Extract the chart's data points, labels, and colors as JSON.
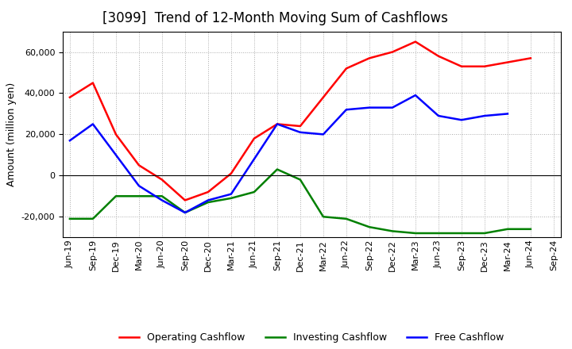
{
  "title": "[3099]  Trend of 12-Month Moving Sum of Cashflows",
  "ylabel": "Amount (million yen)",
  "xlabels": [
    "Jun-19",
    "Sep-19",
    "Dec-19",
    "Mar-20",
    "Jun-20",
    "Sep-20",
    "Dec-20",
    "Mar-21",
    "Jun-21",
    "Sep-21",
    "Dec-21",
    "Mar-22",
    "Jun-22",
    "Sep-22",
    "Dec-22",
    "Mar-23",
    "Jun-23",
    "Sep-23",
    "Dec-23",
    "Mar-24",
    "Jun-24",
    "Sep-24"
  ],
  "operating": [
    38000,
    45000,
    20000,
    5000,
    -2000,
    -12000,
    -8000,
    1000,
    18000,
    25000,
    24000,
    38000,
    52000,
    57000,
    60000,
    65000,
    58000,
    53000,
    53000,
    55000,
    57000,
    null
  ],
  "investing": [
    -21000,
    -21000,
    -10000,
    -10000,
    -10000,
    -18000,
    -13000,
    -11000,
    -8000,
    3000,
    -2000,
    -20000,
    -21000,
    -25000,
    -27000,
    -28000,
    -28000,
    -28000,
    -28000,
    -26000,
    -26000,
    null
  ],
  "free": [
    17000,
    25000,
    10000,
    -5000,
    -12000,
    -18000,
    -12000,
    -9000,
    8000,
    25000,
    21000,
    20000,
    32000,
    33000,
    33000,
    39000,
    29000,
    27000,
    29000,
    30000,
    null,
    null
  ],
  "ylim": [
    -30000,
    70000
  ],
  "yticks": [
    -20000,
    0,
    20000,
    40000,
    60000
  ],
  "operating_color": "#FF0000",
  "investing_color": "#008000",
  "free_color": "#0000FF",
  "bg_color": "#FFFFFF",
  "plot_bg_color": "#FFFFFF",
  "grid_color": "#AAAAAA",
  "title_fontsize": 12,
  "label_fontsize": 9,
  "tick_fontsize": 8,
  "legend_fontsize": 9,
  "line_width": 1.8
}
